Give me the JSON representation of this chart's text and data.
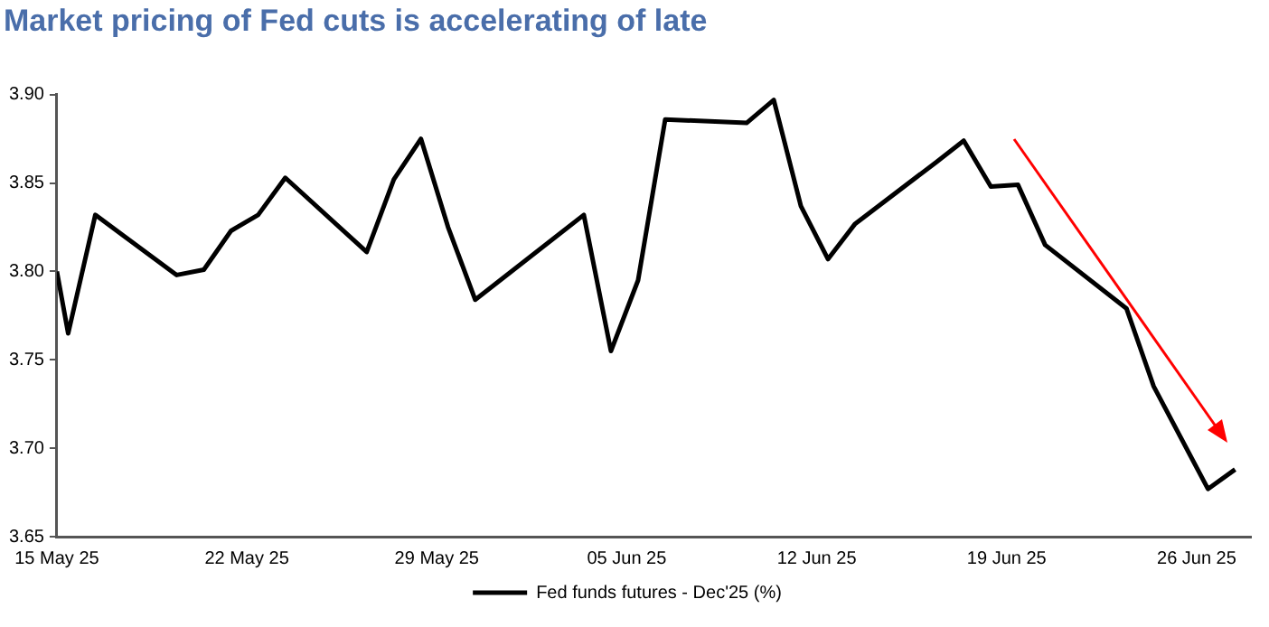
{
  "chart_data": {
    "type": "line",
    "title": "Market pricing of Fed cuts is accelerating of late",
    "x": [
      "2025-05-15T00:00",
      "2025-05-15T10:00",
      "2025-05-16T10:00",
      "2025-05-19T10:00",
      "2025-05-20T10:00",
      "2025-05-21T10:00",
      "2025-05-22T10:00",
      "2025-05-23T10:00",
      "2025-05-26T10:00",
      "2025-05-27T10:00",
      "2025-05-28T10:00",
      "2025-05-29T10:00",
      "2025-05-30T10:00",
      "2025-06-03T10:00",
      "2025-06-04T10:00",
      "2025-06-05T10:00",
      "2025-06-06T10:00",
      "2025-06-09T10:00",
      "2025-06-10T10:00",
      "2025-06-11T10:00",
      "2025-06-12T10:00",
      "2025-06-13T10:00",
      "2025-06-16T10:00",
      "2025-06-17T10:00",
      "2025-06-18T10:00",
      "2025-06-19T10:00",
      "2025-06-20T10:00",
      "2025-06-23T10:00",
      "2025-06-24T10:00",
      "2025-06-26T10:00",
      "2025-06-27T10:00"
    ],
    "series": [
      {
        "name": "Fed funds futures - Dec'25 (%)",
        "color": "#000000",
        "values": [
          3.8,
          3.765,
          3.832,
          3.798,
          3.801,
          3.823,
          3.832,
          3.853,
          3.811,
          3.852,
          3.875,
          3.825,
          3.784,
          3.832,
          3.755,
          3.795,
          3.886,
          3.884,
          3.897,
          3.837,
          3.807,
          3.827,
          3.862,
          3.874,
          3.848,
          3.849,
          3.815,
          3.779,
          3.735,
          3.677,
          3.688
        ]
      }
    ],
    "xlim": [
      "2025-05-15",
      "2025-06-28"
    ],
    "xticks": [
      {
        "value": "2025-05-15",
        "label": "15 May 25"
      },
      {
        "value": "2025-05-22",
        "label": "22 May 25"
      },
      {
        "value": "2025-05-29",
        "label": "29 May 25"
      },
      {
        "value": "2025-06-05",
        "label": "05 Jun 25"
      },
      {
        "value": "2025-06-12",
        "label": "12 Jun 25"
      },
      {
        "value": "2025-06-19",
        "label": "19 Jun 25"
      },
      {
        "value": "2025-06-26",
        "label": "26 Jun 25"
      }
    ],
    "ylim": [
      3.65,
      3.9
    ],
    "yticks": [
      3.65,
      {
        "value": 3.7,
        "label": "3.70"
      },
      3.75,
      {
        "value": 3.8,
        "label": "3.80"
      },
      3.85,
      {
        "value": 3.9,
        "label": "3.90"
      }
    ],
    "grid": false,
    "legend": "bottom",
    "marker": "none",
    "line_style": "solid"
  }
}
